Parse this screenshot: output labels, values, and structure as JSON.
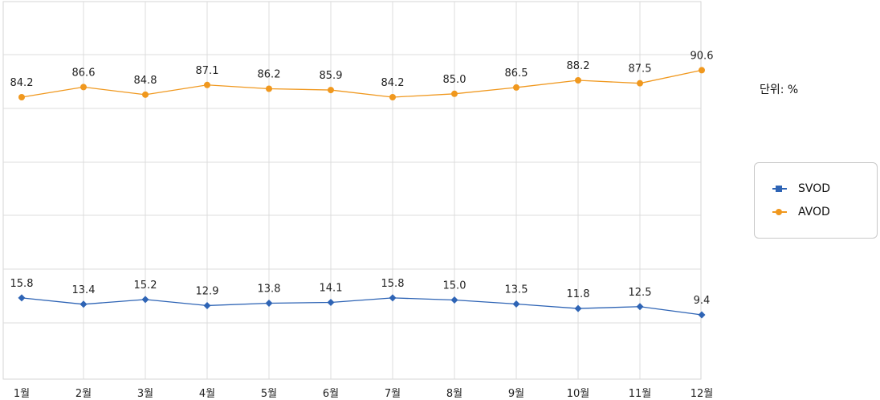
{
  "chart_data": {
    "type": "line",
    "categories": [
      "1월",
      "2월",
      "3월",
      "4월",
      "5월",
      "6월",
      "7월",
      "8월",
      "9월",
      "10월",
      "11월",
      "12월"
    ],
    "series": [
      {
        "name": "SVOD",
        "color": "#2e64b5",
        "marker": "diamond",
        "values": [
          15.8,
          13.4,
          15.2,
          12.9,
          13.8,
          14.1,
          15.8,
          15.0,
          13.5,
          11.8,
          12.5,
          9.4
        ]
      },
      {
        "name": "AVOD",
        "color": "#f0981e",
        "marker": "circle",
        "values": [
          84.2,
          86.6,
          84.8,
          87.1,
          86.2,
          85.9,
          84.2,
          85.0,
          86.5,
          88.2,
          87.5,
          90.6
        ]
      }
    ],
    "grid": true,
    "legend_position": "right",
    "unit_label": "단위: %"
  }
}
